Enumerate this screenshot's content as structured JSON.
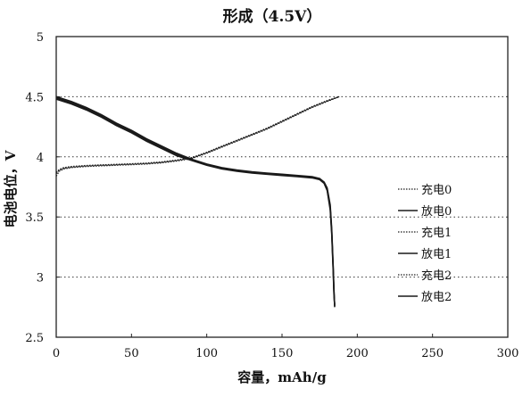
{
  "chart_data": {
    "type": "line",
    "title": "形成（4.5V）",
    "xlabel": "容量，mAh/g",
    "ylabel": "电池电位，V",
    "xlim": [
      0,
      300
    ],
    "ylim": [
      2.5,
      5
    ],
    "xticks": [
      0,
      50,
      100,
      150,
      200,
      250,
      300
    ],
    "xtick_labels": [
      "0",
      "50",
      "100",
      "150",
      "200",
      "250",
      "300"
    ],
    "yticks": [
      2.5,
      3,
      3.5,
      4,
      4.5,
      5
    ],
    "ytick_labels": [
      "2.5",
      "3",
      "3.5",
      "4",
      "4.5",
      "5"
    ],
    "grid": {
      "horizontal_dotted": true
    },
    "legend_position": "right",
    "series": [
      {
        "name": "充电0",
        "style": "dotted",
        "x": [
          0,
          2,
          5,
          10,
          20,
          30,
          40,
          50,
          60,
          70,
          80,
          90,
          100,
          110,
          120,
          130,
          140,
          150,
          160,
          170,
          180,
          188
        ],
        "y": [
          3.84,
          3.88,
          3.9,
          3.91,
          3.92,
          3.925,
          3.93,
          3.935,
          3.94,
          3.95,
          3.965,
          3.985,
          4.03,
          4.08,
          4.13,
          4.18,
          4.23,
          4.29,
          4.35,
          4.41,
          4.46,
          4.5
        ]
      },
      {
        "name": "放电0",
        "style": "solid",
        "x": [
          0,
          10,
          20,
          30,
          40,
          50,
          60,
          70,
          80,
          90,
          100,
          110,
          120,
          130,
          140,
          150,
          160,
          170,
          175,
          178,
          180,
          182,
          183,
          184,
          184.5,
          185
        ],
        "y": [
          4.5,
          4.46,
          4.41,
          4.35,
          4.28,
          4.22,
          4.15,
          4.09,
          4.03,
          3.98,
          3.94,
          3.91,
          3.89,
          3.875,
          3.865,
          3.855,
          3.845,
          3.835,
          3.82,
          3.79,
          3.74,
          3.6,
          3.4,
          3.1,
          2.9,
          2.75
        ]
      },
      {
        "name": "充电1",
        "style": "dotted",
        "x": [
          0,
          2,
          5,
          10,
          20,
          30,
          40,
          50,
          60,
          70,
          80,
          90,
          100,
          110,
          120,
          130,
          140,
          150,
          160,
          170,
          180,
          188
        ],
        "y": [
          3.86,
          3.89,
          3.905,
          3.915,
          3.925,
          3.93,
          3.935,
          3.94,
          3.945,
          3.955,
          3.97,
          3.99,
          4.035,
          4.085,
          4.135,
          4.185,
          4.235,
          4.295,
          4.355,
          4.415,
          4.465,
          4.5
        ]
      },
      {
        "name": "放电1",
        "style": "solid",
        "x": [
          0,
          10,
          20,
          30,
          40,
          50,
          60,
          70,
          80,
          90,
          100,
          110,
          120,
          130,
          140,
          150,
          160,
          170,
          175,
          178,
          180,
          182,
          183,
          184,
          184.5,
          185
        ],
        "y": [
          4.49,
          4.45,
          4.4,
          4.34,
          4.27,
          4.21,
          4.14,
          4.08,
          4.02,
          3.975,
          3.935,
          3.905,
          3.885,
          3.87,
          3.86,
          3.85,
          3.84,
          3.83,
          3.815,
          3.785,
          3.73,
          3.58,
          3.38,
          3.08,
          2.88,
          2.76
        ]
      },
      {
        "name": "充电2",
        "style": "dotted",
        "x": [
          0,
          2,
          5,
          10,
          20,
          30,
          40,
          50,
          60,
          70,
          80,
          90,
          100,
          110,
          120,
          130,
          140,
          150,
          160,
          170,
          180,
          188
        ],
        "y": [
          3.87,
          3.895,
          3.91,
          3.92,
          3.928,
          3.933,
          3.938,
          3.943,
          3.948,
          3.958,
          3.973,
          3.993,
          4.038,
          4.088,
          4.138,
          4.188,
          4.238,
          4.298,
          4.358,
          4.418,
          4.468,
          4.5
        ]
      },
      {
        "name": "放电2",
        "style": "solid",
        "x": [
          0,
          10,
          20,
          30,
          40,
          50,
          60,
          70,
          80,
          90,
          100,
          110,
          120,
          130,
          140,
          150,
          160,
          170,
          175,
          178,
          180,
          182,
          183,
          184,
          184.5,
          185
        ],
        "y": [
          4.48,
          4.44,
          4.39,
          4.33,
          4.26,
          4.2,
          4.13,
          4.07,
          4.01,
          3.97,
          3.93,
          3.9,
          3.88,
          3.865,
          3.855,
          3.845,
          3.835,
          3.825,
          3.81,
          3.78,
          3.72,
          3.56,
          3.36,
          3.06,
          2.86,
          2.77
        ]
      }
    ]
  }
}
